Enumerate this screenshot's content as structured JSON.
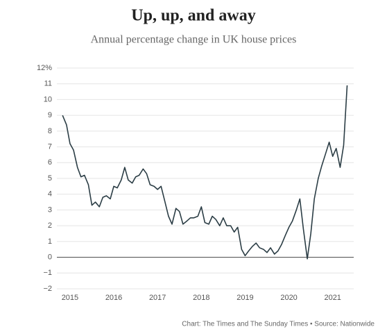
{
  "chart_data": {
    "type": "line",
    "title": "Up, up, and away",
    "subtitle": "Annual percentage change in UK house prices",
    "source": "Chart: The Times and The Sunday Times • Source: Nationwide",
    "x": [
      2014.83,
      2014.92,
      2015.0,
      2015.08,
      2015.17,
      2015.25,
      2015.33,
      2015.42,
      2015.5,
      2015.58,
      2015.67,
      2015.75,
      2015.83,
      2015.92,
      2016.0,
      2016.08,
      2016.17,
      2016.25,
      2016.33,
      2016.42,
      2016.5,
      2016.58,
      2016.67,
      2016.75,
      2016.83,
      2016.92,
      2017.0,
      2017.08,
      2017.17,
      2017.25,
      2017.33,
      2017.42,
      2017.5,
      2017.58,
      2017.67,
      2017.75,
      2017.83,
      2017.92,
      2018.0,
      2018.08,
      2018.17,
      2018.25,
      2018.33,
      2018.42,
      2018.5,
      2018.58,
      2018.67,
      2018.75,
      2018.83,
      2018.92,
      2019.0,
      2019.08,
      2019.17,
      2019.25,
      2019.33,
      2019.42,
      2019.5,
      2019.58,
      2019.67,
      2019.75,
      2019.83,
      2019.92,
      2020.0,
      2020.08,
      2020.17,
      2020.25,
      2020.33,
      2020.42,
      2020.5,
      2020.58,
      2020.67,
      2020.75,
      2020.83,
      2020.92,
      2021.0,
      2021.08,
      2021.17,
      2021.25,
      2021.33
    ],
    "series": [
      {
        "name": "UK house prices",
        "color": "#2b3d45",
        "values": [
          9.0,
          8.4,
          7.2,
          6.8,
          5.7,
          5.1,
          5.2,
          4.6,
          3.3,
          3.5,
          3.2,
          3.8,
          3.9,
          3.7,
          4.5,
          4.4,
          4.9,
          5.7,
          4.9,
          4.7,
          5.1,
          5.2,
          5.6,
          5.3,
          4.6,
          4.5,
          4.3,
          4.5,
          3.5,
          2.6,
          2.1,
          3.1,
          2.9,
          2.1,
          2.3,
          2.5,
          2.5,
          2.6,
          3.2,
          2.2,
          2.1,
          2.6,
          2.4,
          2.0,
          2.5,
          2.0,
          2.0,
          1.6,
          1.9,
          0.5,
          0.1,
          0.4,
          0.7,
          0.9,
          0.6,
          0.5,
          0.3,
          0.6,
          0.2,
          0.4,
          0.8,
          1.4,
          1.9,
          2.3,
          3.0,
          3.7,
          1.8,
          -0.1,
          1.5,
          3.7,
          5.0,
          5.8,
          6.5,
          7.3,
          6.4,
          6.9,
          5.7,
          7.1,
          10.9
        ]
      }
    ],
    "xlim": [
      2014.7,
      2021.48
    ],
    "xticks": [
      2015,
      2016,
      2017,
      2018,
      2019,
      2020,
      2021
    ],
    "ylim": [
      -2,
      12
    ],
    "yticks": [
      {
        "value": -2,
        "label": "−2"
      },
      {
        "value": -1,
        "label": "−1"
      },
      0,
      1,
      2,
      3,
      4,
      5,
      6,
      7,
      8,
      9,
      10,
      11,
      {
        "value": 12,
        "label": "12%"
      }
    ],
    "grid": true
  }
}
